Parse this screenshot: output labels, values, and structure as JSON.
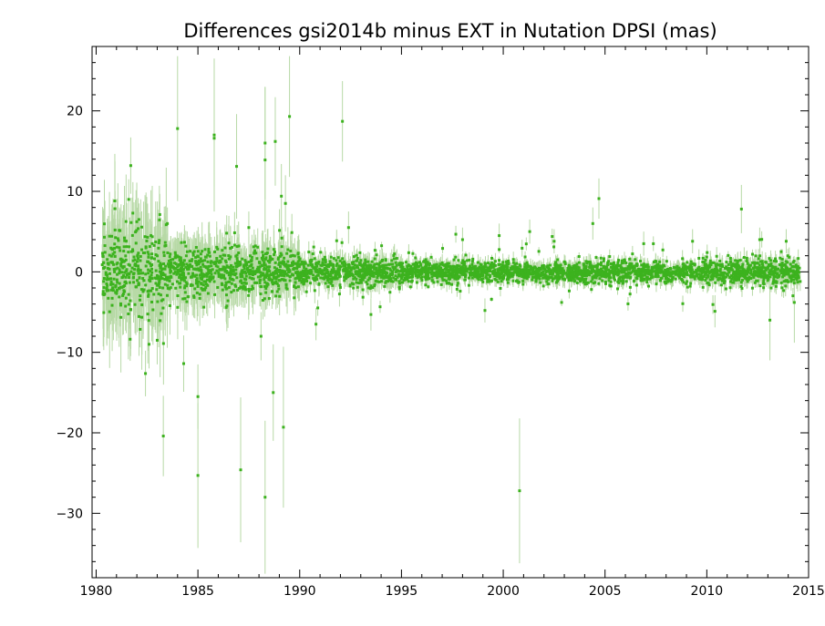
{
  "chart_data": {
    "type": "scatter",
    "title": "Differences gsi2014b minus EXT in Nutation DPSI (mas)",
    "xlabel": "",
    "ylabel": "",
    "xlim": [
      1979.8,
      2015.0
    ],
    "ylim": [
      -38,
      28
    ],
    "x_ticks": [
      1980,
      1985,
      1990,
      1995,
      2000,
      2005,
      2010,
      2015
    ],
    "y_ticks": [
      20,
      10,
      0,
      -10,
      -20,
      -30
    ],
    "grid": false,
    "legend": "none",
    "marker_color": "#3cb21e",
    "errorbar_color": "#b7d9a6",
    "outliers": [
      {
        "x": 1981.6,
        "y": 9.0,
        "err": 2.5
      },
      {
        "x": 1981.7,
        "y": 13.2,
        "err": 3.5
      },
      {
        "x": 1982.1,
        "y": 6.5,
        "err": 2.0
      },
      {
        "x": 1982.6,
        "y": -9.0,
        "err": 3.0
      },
      {
        "x": 1983.0,
        "y": -8.5,
        "err": 3.0
      },
      {
        "x": 1983.3,
        "y": -20.4,
        "err": 5.0
      },
      {
        "x": 1983.5,
        "y": 6.0,
        "err": 2.0
      },
      {
        "x": 1984.0,
        "y": 17.8,
        "err": 9.0
      },
      {
        "x": 1984.3,
        "y": -11.4,
        "err": 3.5
      },
      {
        "x": 1985.0,
        "y": -15.5,
        "err": 4.0
      },
      {
        "x": 1985.0,
        "y": -25.3,
        "err": 9.0
      },
      {
        "x": 1985.8,
        "y": 17.0,
        "err": 9.5
      },
      {
        "x": 1985.8,
        "y": 16.6,
        "err": 6.0
      },
      {
        "x": 1986.9,
        "y": 13.1,
        "err": 6.5
      },
      {
        "x": 1987.1,
        "y": -24.6,
        "err": 9.0
      },
      {
        "x": 1987.5,
        "y": 5.5,
        "err": 2.0
      },
      {
        "x": 1988.1,
        "y": -8.0,
        "err": 3.0
      },
      {
        "x": 1988.3,
        "y": 13.9,
        "err": 9.0
      },
      {
        "x": 1988.3,
        "y": 16.0,
        "err": 7.0
      },
      {
        "x": 1988.3,
        "y": -28.0,
        "err": 9.5
      },
      {
        "x": 1988.7,
        "y": -15.0,
        "err": 6.0
      },
      {
        "x": 1988.8,
        "y": 16.2,
        "err": 5.5
      },
      {
        "x": 1989.1,
        "y": 9.4,
        "err": 4.0
      },
      {
        "x": 1989.2,
        "y": -19.3,
        "err": 10.0
      },
      {
        "x": 1989.3,
        "y": 8.5,
        "err": 3.5
      },
      {
        "x": 1989.5,
        "y": 19.3,
        "err": 7.5
      },
      {
        "x": 1990.8,
        "y": -6.5,
        "err": 2.0
      },
      {
        "x": 1992.1,
        "y": 18.7,
        "err": 5.0
      },
      {
        "x": 1992.4,
        "y": 5.5,
        "err": 2.0
      },
      {
        "x": 1993.5,
        "y": -5.3,
        "err": 2.0
      },
      {
        "x": 1998.0,
        "y": 4.0,
        "err": 1.5
      },
      {
        "x": 1999.1,
        "y": -4.8,
        "err": 1.5
      },
      {
        "x": 1999.8,
        "y": 4.5,
        "err": 1.5
      },
      {
        "x": 2000.8,
        "y": -27.2,
        "err": 9.0
      },
      {
        "x": 2001.3,
        "y": 5.0,
        "err": 1.5
      },
      {
        "x": 2002.5,
        "y": 3.8,
        "err": 1.5
      },
      {
        "x": 2004.4,
        "y": 6.0,
        "err": 2.0
      },
      {
        "x": 2004.7,
        "y": 9.1,
        "err": 2.5
      },
      {
        "x": 2006.9,
        "y": 3.5,
        "err": 1.5
      },
      {
        "x": 2009.3,
        "y": 3.8,
        "err": 1.5
      },
      {
        "x": 2010.4,
        "y": -4.9,
        "err": 2.0
      },
      {
        "x": 2011.7,
        "y": 7.8,
        "err": 3.0
      },
      {
        "x": 2012.6,
        "y": 4.0,
        "err": 1.5
      },
      {
        "x": 2013.1,
        "y": -6.0,
        "err": 5.0
      },
      {
        "x": 2013.9,
        "y": 3.8,
        "err": 1.5
      },
      {
        "x": 2014.3,
        "y": -3.8,
        "err": 5.0
      }
    ],
    "spread_segments": [
      {
        "x_start": 1980.3,
        "x_end": 1983.5,
        "sd": 2.8,
        "err": 4.5
      },
      {
        "x_start": 1983.5,
        "x_end": 1987.0,
        "sd": 1.5,
        "err": 2.5
      },
      {
        "x_start": 1987.0,
        "x_end": 1990.0,
        "sd": 1.3,
        "err": 2.0
      },
      {
        "x_start": 1990.0,
        "x_end": 1995.0,
        "sd": 0.9,
        "err": 1.0
      },
      {
        "x_start": 1995.0,
        "x_end": 2010.0,
        "sd": 0.65,
        "err": 0.7
      },
      {
        "x_start": 2010.0,
        "x_end": 2014.6,
        "sd": 0.75,
        "err": 0.8
      }
    ]
  }
}
